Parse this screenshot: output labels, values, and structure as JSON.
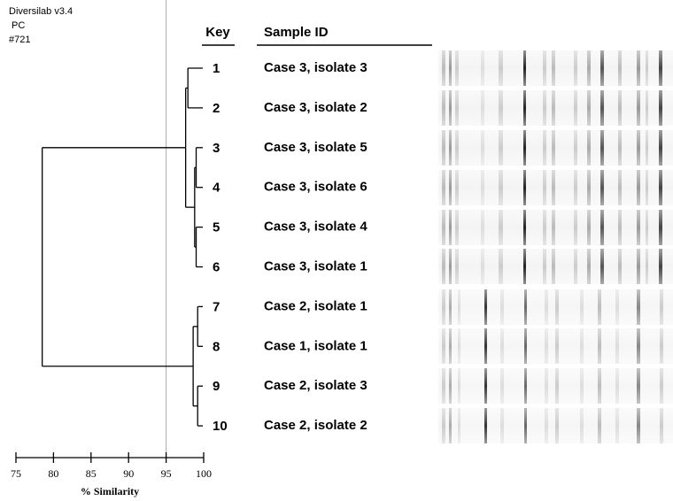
{
  "chart_data": {
    "type": "dendrogram",
    "header": [
      "Diversilab v3.4",
      "PC",
      "#721"
    ],
    "key_title": "Key",
    "sample_title": "Sample ID",
    "keys": [
      "1",
      "2",
      "3",
      "4",
      "5",
      "6",
      "7",
      "8",
      "9",
      "10"
    ],
    "samples": [
      "Case 3, isolate 3",
      "Case 3, isolate 2",
      "Case 3, isolate 5",
      "Case 3, isolate 6",
      "Case 3, isolate 4",
      "Case 3, isolate 1",
      "Case 2, isolate 1",
      "Case 1, isolate 1",
      "Case 2, isolate 3",
      "Case 2, isolate 2"
    ],
    "merges": [
      {
        "left": 0,
        "right": 1,
        "similarity": 97.9
      },
      {
        "left": 2,
        "right": 3,
        "similarity": 99.0
      },
      {
        "left": 4,
        "right": 5,
        "similarity": 99.0
      },
      {
        "left": 11,
        "right": 12,
        "similarity": 98.8
      },
      {
        "left": 10,
        "right": 13,
        "similarity": 97.6
      },
      {
        "left": 6,
        "right": 7,
        "similarity": 99.2
      },
      {
        "left": 8,
        "right": 9,
        "similarity": 99.2
      },
      {
        "left": 15,
        "right": 16,
        "similarity": 98.6
      },
      {
        "left": 14,
        "right": 17,
        "similarity": 78.5
      }
    ],
    "cutoff": 95,
    "xlabel": "% Similarity",
    "xlim": [
      75,
      100
    ],
    "xticks": [
      75,
      80,
      85,
      90,
      95,
      100
    ]
  }
}
